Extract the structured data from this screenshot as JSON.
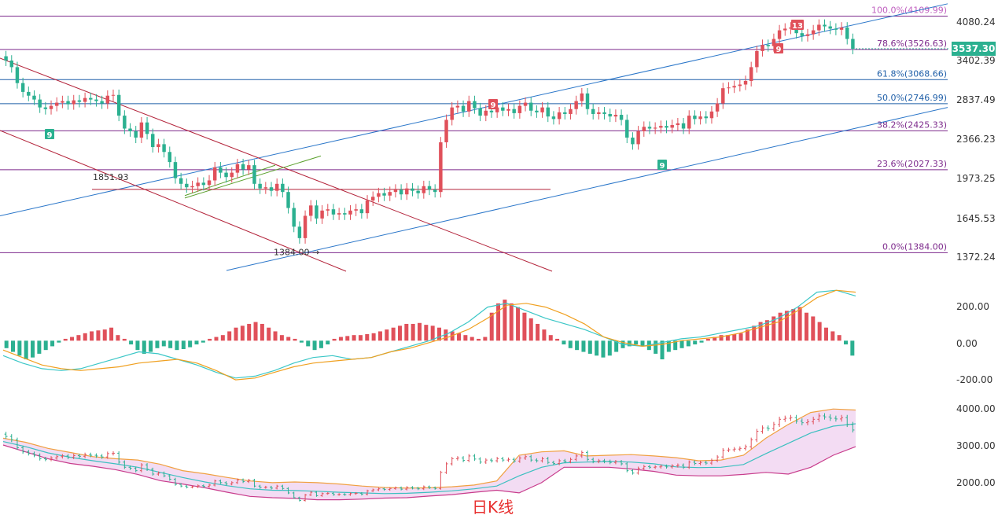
{
  "colors": {
    "up": "#e0505a",
    "down": "#2bb090",
    "fib": "#7d2a8c",
    "fib_blue": "#1f5fa8",
    "channel_blue": "#2a76c9",
    "channel_red": "#b3233a",
    "wedge_green": "#5aa02c",
    "macd_dif": "#3cc7c7",
    "macd_dea": "#f0a020",
    "boll_upper": "#f0a040",
    "boll_lower": "#c83c8c",
    "boll_mid": "#3cc0c0",
    "boll_fill": "#f3dcf3",
    "price_tag": "#2bb090"
  },
  "chart_data": [
    {
      "type": "candlestick",
      "panel": "main",
      "y_scale": "log",
      "ylim": [
        1280,
        4300
      ],
      "y_ticks": [
        "4080.24",
        "3402.39",
        "2837.49",
        "2366.23",
        "1973.25",
        "1645.53",
        "1372.24"
      ],
      "fib_levels": [
        {
          "label": "100.0%(4109.99)",
          "value": 4109.99
        },
        {
          "label": "78.6%(3526.63)",
          "value": 3526.63
        },
        {
          "label": "61.8%(3068.66)",
          "value": 3068.66
        },
        {
          "label": "50.0%(2746.99)",
          "value": 2746.99
        },
        {
          "label": "38.2%(2425.33)",
          "value": 2425.33
        },
        {
          "label": "23.6%(2027.33)",
          "value": 2027.33
        },
        {
          "label": "0.0%(1384.00)",
          "value": 1384.0
        }
      ],
      "annotations": [
        {
          "text": "1851.93",
          "value": 1851.93
        },
        {
          "text": "1384.00",
          "value": 1384.0
        }
      ],
      "last_price": "3537.30",
      "td_markers": [
        {
          "text": "9",
          "kind": "buy"
        },
        {
          "text": "9",
          "kind": "sell"
        },
        {
          "text": "9",
          "kind": "buy"
        },
        {
          "text": "9",
          "kind": "sell"
        },
        {
          "text": "13",
          "kind": "sell"
        }
      ],
      "closes": [
        3350,
        3250,
        3020,
        2900,
        2850,
        2800,
        2700,
        2680,
        2720,
        2760,
        2780,
        2740,
        2790,
        2770,
        2820,
        2800,
        2780,
        2750,
        2850,
        2860,
        2600,
        2450,
        2420,
        2350,
        2520,
        2390,
        2250,
        2280,
        2200,
        2100,
        1950,
        1900,
        1870,
        1880,
        1910,
        1890,
        1930,
        2050,
        2000,
        1960,
        2000,
        2080,
        2030,
        2070,
        1900,
        1860,
        1870,
        1840,
        1900,
        1830,
        1700,
        1560,
        1480,
        1640,
        1720,
        1620,
        1680,
        1690,
        1650,
        1660,
        1650,
        1680,
        1690,
        1660,
        1760,
        1790,
        1820,
        1800,
        1830,
        1850,
        1810,
        1860,
        1840,
        1820,
        1880,
        1850,
        1830,
        2300,
        2550,
        2700,
        2720,
        2650,
        2780,
        2690,
        2600,
        2660,
        2640,
        2700,
        2660,
        2680,
        2630,
        2720,
        2760,
        2660,
        2640,
        2700,
        2590,
        2560,
        2640,
        2620,
        2680,
        2780,
        2880,
        2680,
        2620,
        2640,
        2620,
        2590,
        2610,
        2550,
        2350,
        2280,
        2420,
        2470,
        2450,
        2460,
        2480,
        2460,
        2490,
        2510,
        2450,
        2600,
        2560,
        2590,
        2570,
        2650,
        2750,
        2950,
        2960,
        2980,
        3000,
        3050,
        3250,
        3500,
        3600,
        3580,
        3700,
        3850,
        3880,
        3900,
        3800,
        3750,
        3780,
        3850,
        3950,
        3920,
        3880,
        3860,
        3900,
        3700,
        3537.3
      ]
    },
    {
      "type": "bar",
      "panel": "macd",
      "ylim": [
        -260,
        330
      ],
      "y_ticks": [
        "200.00",
        "0.00",
        "-200.00"
      ],
      "histogram": [
        -40,
        -60,
        -80,
        -100,
        -90,
        -70,
        -50,
        -30,
        -10,
        10,
        20,
        30,
        40,
        50,
        55,
        60,
        70,
        30,
        10,
        -20,
        -50,
        -70,
        -60,
        -40,
        -30,
        -40,
        -50,
        -45,
        -35,
        -20,
        -10,
        10,
        20,
        30,
        50,
        70,
        80,
        90,
        100,
        90,
        70,
        50,
        30,
        20,
        10,
        -10,
        -30,
        -50,
        -40,
        -20,
        10,
        20,
        25,
        30,
        30,
        35,
        40,
        50,
        60,
        70,
        80,
        90,
        90,
        95,
        85,
        80,
        70,
        60,
        50,
        40,
        30,
        20,
        10,
        20,
        150,
        200,
        220,
        200,
        180,
        150,
        120,
        90,
        60,
        30,
        10,
        -20,
        -40,
        -50,
        -60,
        -70,
        -80,
        -90,
        -80,
        -60,
        -40,
        -30,
        -20,
        -30,
        -50,
        -70,
        -100,
        -60,
        -50,
        -40,
        -30,
        -20,
        -10,
        10,
        20,
        30,
        30,
        35,
        40,
        60,
        80,
        100,
        110,
        130,
        150,
        160,
        170,
        180,
        150,
        130,
        100,
        70,
        50,
        30,
        -20,
        -80
      ],
      "dif": [
        -80,
        -120,
        -150,
        -160,
        -150,
        -120,
        -90,
        -60,
        -70,
        -100,
        -130,
        -170,
        -200,
        -190,
        -160,
        -120,
        -90,
        -80,
        -100,
        -90,
        -60,
        -30,
        0,
        40,
        100,
        180,
        200,
        160,
        120,
        90,
        60,
        20,
        -20,
        -30,
        -10,
        10,
        20,
        40,
        60,
        80,
        120,
        180,
        260,
        270,
        240
      ],
      "dea": [
        -50,
        -90,
        -130,
        -150,
        -160,
        -150,
        -140,
        -120,
        -110,
        -100,
        -120,
        -160,
        -210,
        -200,
        -170,
        -140,
        -120,
        -110,
        -100,
        -90,
        -60,
        -40,
        -10,
        20,
        60,
        120,
        190,
        200,
        180,
        140,
        90,
        20,
        -10,
        -30,
        -20,
        0,
        10,
        20,
        40,
        70,
        100,
        160,
        230,
        270,
        260
      ]
    },
    {
      "type": "line",
      "panel": "boll",
      "ylim": [
        1400,
        4500
      ],
      "y_ticks": [
        "4000.00",
        "3000.00",
        "2000.00"
      ],
      "upper": [
        3300,
        3180,
        3000,
        2880,
        2760,
        2700,
        2660,
        2540,
        2350,
        2260,
        2150,
        2050,
        2000,
        2020,
        2000,
        1960,
        1900,
        1860,
        1840,
        1850,
        1880,
        1930,
        2050,
        2800,
        2900,
        2930,
        2780,
        2800,
        2820,
        2780,
        2730,
        2640,
        2660,
        2800,
        3300,
        3700,
        4050,
        4150,
        4120
      ],
      "mid": [
        3200,
        3050,
        2870,
        2740,
        2640,
        2550,
        2450,
        2300,
        2150,
        2020,
        1910,
        1820,
        1780,
        1770,
        1750,
        1720,
        1700,
        1680,
        1690,
        1720,
        1760,
        1820,
        1900,
        2200,
        2450,
        2580,
        2600,
        2620,
        2600,
        2550,
        2460,
        2440,
        2450,
        2530,
        2850,
        3150,
        3450,
        3650,
        3720
      ],
      "lower": [
        3100,
        2900,
        2700,
        2560,
        2480,
        2380,
        2240,
        2060,
        1960,
        1850,
        1720,
        1600,
        1560,
        1540,
        1500,
        1500,
        1520,
        1550,
        1560,
        1610,
        1650,
        1720,
        1780,
        1700,
        2000,
        2450,
        2450,
        2450,
        2400,
        2330,
        2220,
        2200,
        2200,
        2240,
        2300,
        2250,
        2450,
        2800,
        3050
      ]
    }
  ],
  "caption": "日K线"
}
